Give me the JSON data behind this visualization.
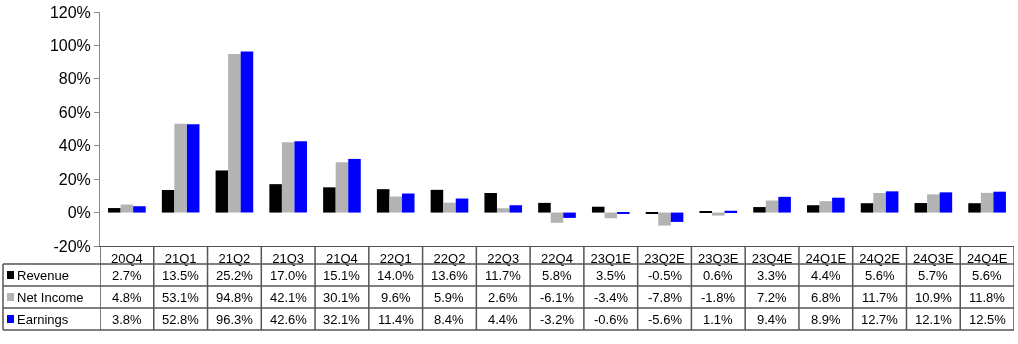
{
  "chart_data": {
    "type": "bar",
    "categories": [
      "20Q4",
      "21Q1",
      "21Q2",
      "21Q3",
      "21Q4",
      "22Q1",
      "22Q2",
      "22Q3",
      "22Q4",
      "23Q1E",
      "23Q2E",
      "23Q3E",
      "23Q4E",
      "24Q1E",
      "24Q2E",
      "24Q3E",
      "24Q4E"
    ],
    "series": [
      {
        "name": "Revenue",
        "color": "#000000",
        "values": [
          2.7,
          13.5,
          25.2,
          17.0,
          15.1,
          14.0,
          13.6,
          11.7,
          5.8,
          3.5,
          -0.5,
          0.6,
          3.3,
          4.4,
          5.6,
          5.7,
          5.6
        ],
        "value_labels": [
          "2.7%",
          "13.5%",
          "25.2%",
          "17.0%",
          "15.1%",
          "14.0%",
          "13.6%",
          "11.7%",
          "5.8%",
          "3.5%",
          "-0.5%",
          "0.6%",
          "3.3%",
          "4.4%",
          "5.6%",
          "5.7%",
          "5.6%"
        ]
      },
      {
        "name": "Net Income",
        "color": "#b3b3b3",
        "values": [
          4.8,
          53.1,
          94.8,
          42.1,
          30.1,
          9.6,
          5.9,
          2.6,
          -6.1,
          -3.4,
          -7.8,
          -1.8,
          7.2,
          6.8,
          11.7,
          10.9,
          11.8
        ],
        "value_labels": [
          "4.8%",
          "53.1%",
          "94.8%",
          "42.1%",
          "30.1%",
          "9.6%",
          "5.9%",
          "2.6%",
          "-6.1%",
          "-3.4%",
          "-7.8%",
          "-1.8%",
          "7.2%",
          "6.8%",
          "11.7%",
          "10.9%",
          "11.8%"
        ]
      },
      {
        "name": "Earnings",
        "color": "#0000ff",
        "values": [
          3.8,
          52.8,
          96.3,
          42.6,
          32.1,
          11.4,
          8.4,
          4.4,
          -3.2,
          -0.6,
          -5.6,
          1.1,
          9.4,
          8.9,
          12.7,
          12.1,
          12.5
        ],
        "value_labels": [
          "3.8%",
          "52.8%",
          "96.3%",
          "42.6%",
          "32.1%",
          "11.4%",
          "8.4%",
          "4.4%",
          "-3.2%",
          "-0.6%",
          "-5.6%",
          "1.1%",
          "9.4%",
          "8.9%",
          "12.7%",
          "12.1%",
          "12.5%"
        ]
      }
    ],
    "ylim": [
      -20,
      120
    ],
    "yticks": [
      {
        "value": -20,
        "label": "-20%"
      },
      {
        "value": 0,
        "label": "0%"
      },
      {
        "value": 20,
        "label": "20%"
      },
      {
        "value": 40,
        "label": "40%"
      },
      {
        "value": 60,
        "label": "60%"
      },
      {
        "value": 80,
        "label": "80%"
      },
      {
        "value": 100,
        "label": "100%"
      },
      {
        "value": 120,
        "label": "120%"
      }
    ],
    "legend": "bottom left"
  }
}
